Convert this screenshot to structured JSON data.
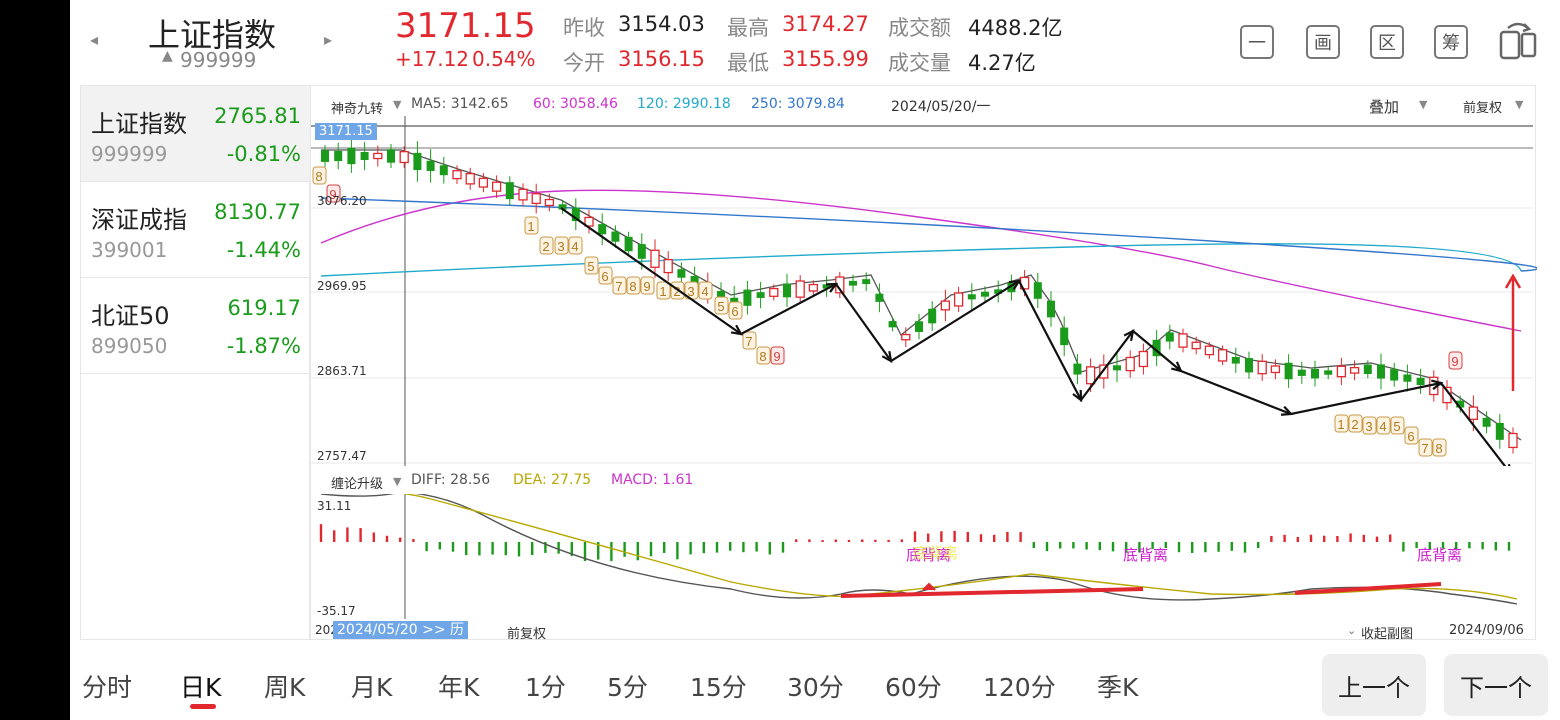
{
  "header": {
    "index_name": "上证指数",
    "index_code": "999999",
    "code_prefix": "▲",
    "price": "3171.15",
    "change": "+17.12",
    "change_pct": "0.54%",
    "prev_close_label": "昨收",
    "prev_close": "3154.03",
    "open_label": "今开",
    "open": "3156.15",
    "high_label": "最高",
    "high": "3174.27",
    "low_label": "最低",
    "low": "3155.99",
    "turnover_label": "成交额",
    "turnover": "4488.2亿",
    "volume_label": "成交量",
    "volume": "4.27亿"
  },
  "toolbar": {
    "minus_label": "一",
    "draw_label": "画",
    "range_label": "区",
    "filter_label": "筹",
    "rotate_icon": "rotate-icon"
  },
  "sidebar": {
    "items": [
      {
        "name": "上证指数",
        "price": "2765.81",
        "code": "999999",
        "pct": "-0.81%"
      },
      {
        "name": "深证成指",
        "price": "8130.77",
        "code": "399001",
        "pct": "-1.44%"
      },
      {
        "name": "北证50",
        "price": "619.17",
        "code": "899050",
        "pct": "-1.87%"
      }
    ]
  },
  "main_chart": {
    "indicator_select": "神奇九转",
    "ma5": "MA5: 3142.65",
    "ma60": "60: 3058.46",
    "ma120": "120: 2990.18",
    "ma250": "250: 3079.84",
    "cursor_date": "2024/05/20/一",
    "overlay_label": "叠加",
    "adjust_label": "前复权",
    "price_marker": "3171.15",
    "y_labels": [
      "3076.20",
      "2969.95",
      "2863.71",
      "2757.47"
    ],
    "colors": {
      "ma5": "#555555",
      "ma60": "#cc33cc",
      "ma120": "#22aacc",
      "ma250": "#3377cc",
      "up": "#e0282e",
      "down": "#1b9b1b"
    }
  },
  "sub_chart": {
    "indicator_select": "缠论升级",
    "diff": "DIFF: 28.56",
    "dea": "DEA: 27.75",
    "macd": "MACD: 1.61",
    "y_top": "31.11",
    "y_bottom": "-35.17",
    "annotations": [
      "底背离",
      "底背离",
      "底背离"
    ],
    "overlap_text": "底背离"
  },
  "footer": {
    "date_left_prefix": "202",
    "cursor_date_tag": "2024/05/20 >> 历",
    "adjust_label": "前复权",
    "collapse_label": "收起副图",
    "date_right": "2024/09/06"
  },
  "tabs": [
    "分时",
    "日K",
    "周K",
    "月K",
    "年K",
    "1分",
    "5分",
    "15分",
    "30分",
    "60分",
    "120分",
    "季K"
  ],
  "nav": {
    "prev": "上一个",
    "next": "下一个"
  },
  "chart_data": {
    "type": "candlestick",
    "x_range": [
      "2024/05/20",
      "2024/09/06"
    ],
    "ylim": [
      2757.47,
      3171.15
    ],
    "moving_averages": {
      "MA5": 3142.65,
      "MA60": 3058.46,
      "MA120": 2990.18,
      "MA250": 3079.84
    },
    "td_sequential_labels": [
      "8",
      "9",
      "1",
      "2",
      "3",
      "4",
      "5",
      "6",
      "7",
      "8",
      "9",
      "1",
      "2",
      "3",
      "4",
      "5",
      "6",
      "7",
      "8",
      "9",
      "1",
      "2",
      "3",
      "4",
      "5",
      "6",
      "7",
      "8",
      "9"
    ],
    "macd": {
      "DIFF": 28.56,
      "DEA": 27.75,
      "MACD": 1.61,
      "ylim": [
        -35.17,
        31.11
      ]
    }
  }
}
